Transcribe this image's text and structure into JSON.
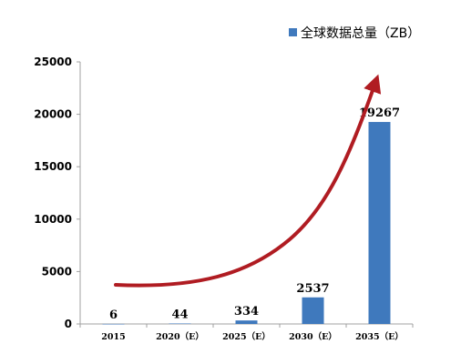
{
  "chart_data": {
    "type": "bar",
    "categories": [
      "2015",
      "2020（E）",
      "2025（E）",
      "2030（E）",
      "2035（E）"
    ],
    "series": [
      {
        "name": "全球数据总量（ZB）",
        "values": [
          6,
          44,
          334,
          2537,
          19267
        ],
        "data_labels": [
          "6",
          "44",
          "334",
          "2537",
          "19267"
        ]
      }
    ],
    "yticks": [
      "0",
      "5000",
      "10000",
      "15000",
      "20000",
      "25000"
    ],
    "ylim": [
      0,
      25000
    ],
    "grid": false,
    "legend_position": "top-right",
    "annotation": "red curved arrow showing exponential growth",
    "colors": {
      "bar": "#3f79bd",
      "arrow": "#b01c22",
      "axis": "#a0a0a0"
    }
  }
}
